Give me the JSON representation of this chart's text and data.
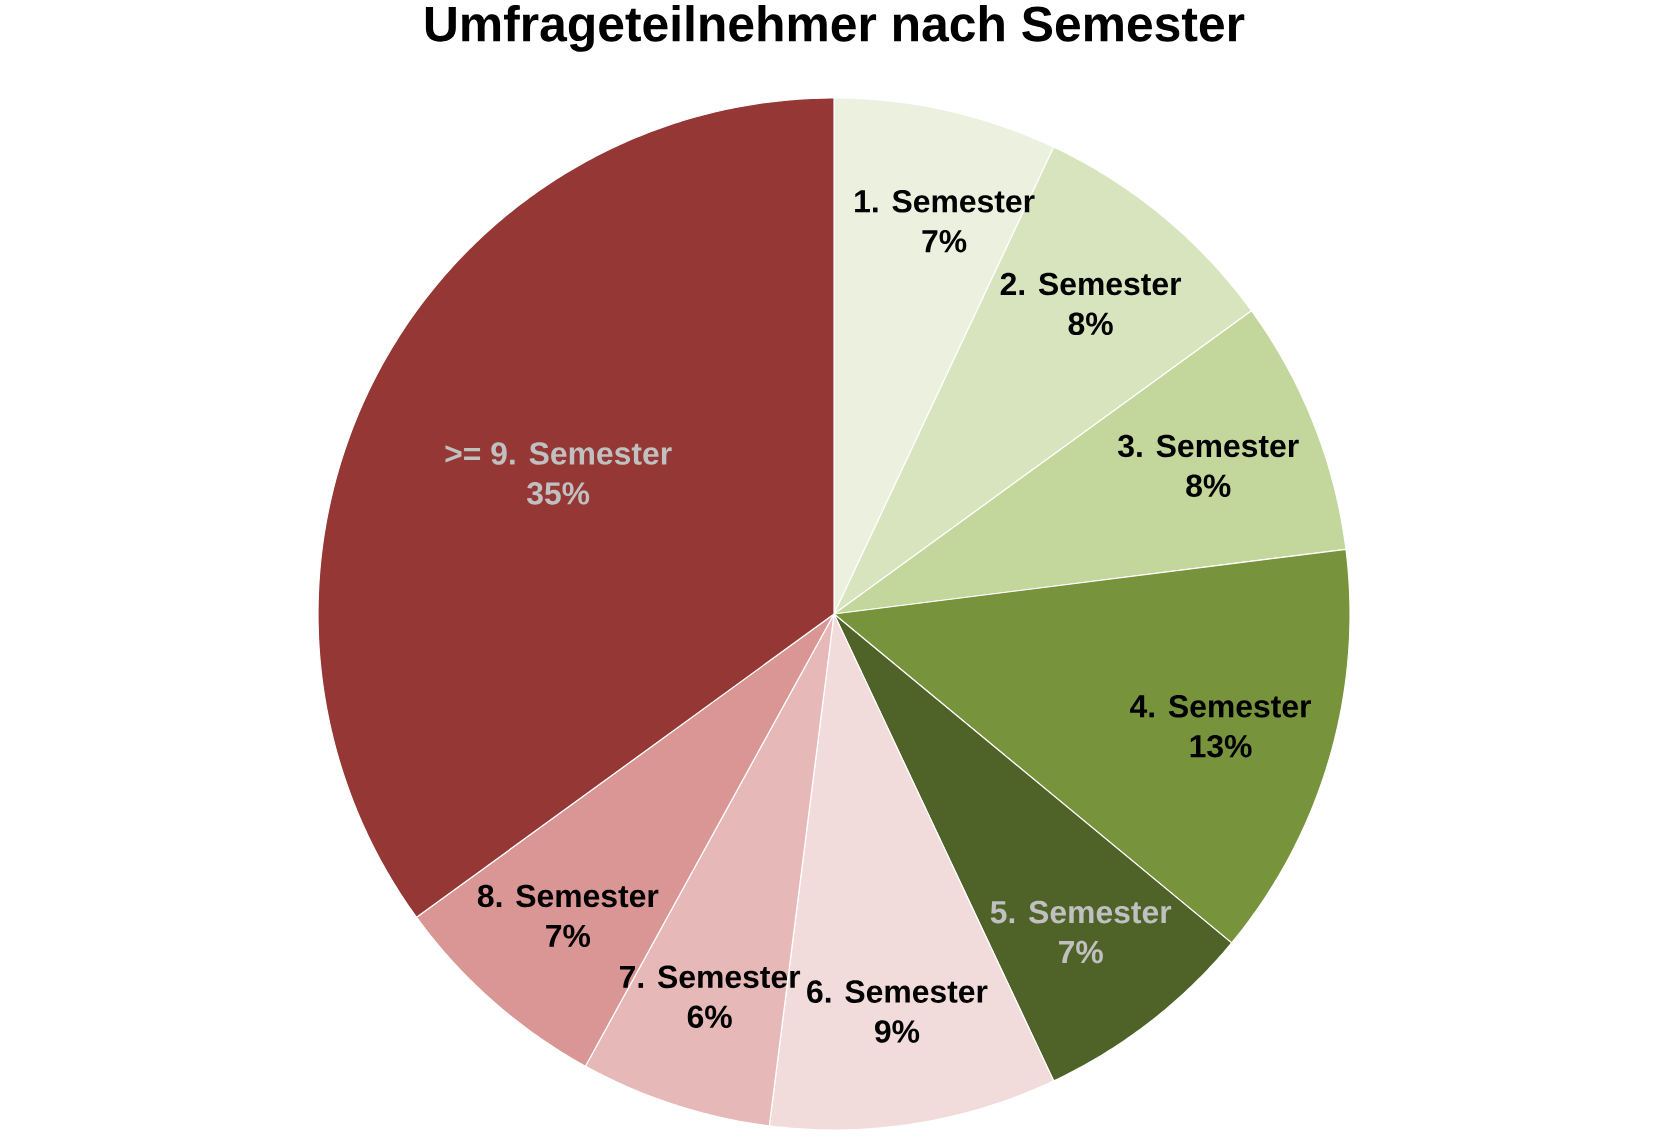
{
  "chart_data": {
    "type": "pie",
    "title": "Umfrageteilnehmer nach Semester",
    "categories": [
      "1. Semester",
      "2. Semester",
      "3. Semester",
      "4. Semester",
      "5. Semester",
      "6. Semester",
      "7. Semester",
      "8. Semester",
      ">= 9. Semester"
    ],
    "values": [
      7,
      8,
      8,
      13,
      7,
      9,
      6,
      7,
      35
    ],
    "colors": [
      "#ebf1de",
      "#d7e4bd",
      "#c3d69b",
      "#77933c",
      "#4f6228",
      "#f2dcdb",
      "#e6b9b8",
      "#d99694",
      "#953735"
    ],
    "value_labels": [
      "7%",
      "8%",
      "8%",
      "13%",
      "7%",
      "9%",
      "6%",
      "7%",
      "35%"
    ]
  }
}
